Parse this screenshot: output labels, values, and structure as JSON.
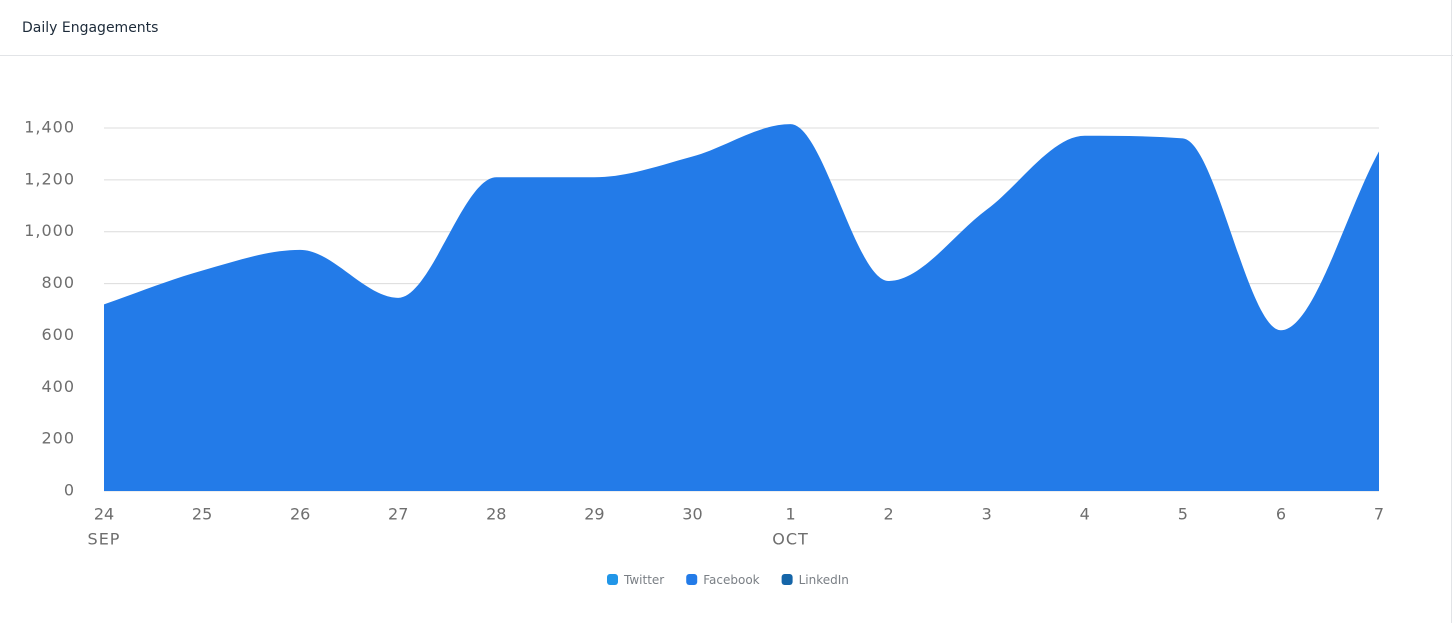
{
  "header": {
    "title": "Daily Engagements"
  },
  "chart_data": {
    "type": "area",
    "categories": [
      "24",
      "25",
      "26",
      "27",
      "28",
      "29",
      "30",
      "1",
      "2",
      "3",
      "4",
      "5",
      "6",
      "7"
    ],
    "months": [
      "SEP",
      null,
      null,
      null,
      null,
      null,
      null,
      "OCT",
      null,
      null,
      null,
      null,
      null,
      null
    ],
    "series": [
      {
        "name": "Twitter",
        "color": "#2196e8",
        "values": [
          0,
          0,
          0,
          0,
          0,
          0,
          0,
          0,
          0,
          0,
          0,
          0,
          0,
          0
        ]
      },
      {
        "name": "Facebook",
        "color": "#237be8",
        "values": [
          720,
          850,
          930,
          745,
          1210,
          1210,
          1290,
          1415,
          810,
          1085,
          1370,
          1360,
          620,
          1310
        ]
      },
      {
        "name": "LinkedIn",
        "color": "#1565a8",
        "values": [
          0,
          0,
          0,
          0,
          0,
          0,
          0,
          0,
          0,
          0,
          0,
          0,
          0,
          0
        ]
      }
    ],
    "ylim": [
      0,
      1400
    ],
    "yticks": [
      0,
      200,
      400,
      600,
      800,
      {
        "value": 1000,
        "label": "1,000"
      },
      {
        "value": 1200,
        "label": "1,200"
      },
      {
        "value": 1400,
        "label": "1,400"
      }
    ],
    "grid": true,
    "stacked": true,
    "smooth": true,
    "legend": "bottom"
  }
}
